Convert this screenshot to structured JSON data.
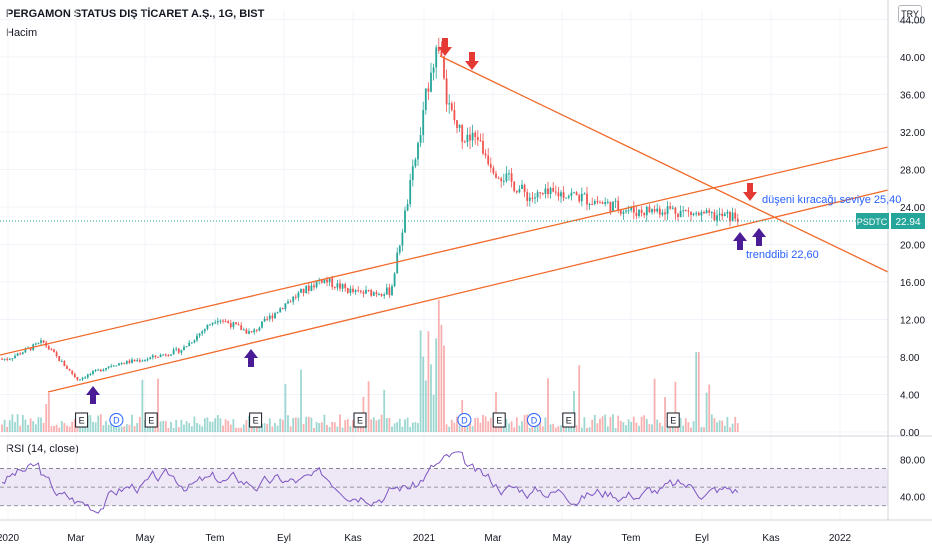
{
  "header": {
    "title": "PERGAMON STATUS DIŞ TİCARET A.Ş., 1G, BIST",
    "volume_label": "Hacim",
    "currency": "TRY",
    "rsi_label": "RSI (14, close)"
  },
  "colors": {
    "up": "#26a69a",
    "down": "#ef5350",
    "trend": "#f06a2b",
    "arrow_red": "#e53935",
    "arrow_purple": "#4a1d96",
    "rsi_line": "#7e57c2",
    "rsi_band": "#ede7f6",
    "price_tag": "#26a69a",
    "annotation": "#2962ff"
  },
  "price_tag": {
    "symbol": "PSDTC",
    "value": "22.94"
  },
  "annotations": {
    "resistance": "düşeni kıracağı seviye 25,40",
    "support": "trenddibi 22,60"
  },
  "chart_data": {
    "type": "candlestick",
    "y_axis": {
      "ylim": [
        0,
        45
      ],
      "ticks": [
        "44.00",
        "40.00",
        "36.00",
        "32.00",
        "28.00",
        "24.00",
        "20.00",
        "16.00",
        "12.00",
        "8.00",
        "4.00",
        "0.00"
      ]
    },
    "x_axis": {
      "ticks": [
        "2020",
        "Mar",
        "May",
        "Tem",
        "Eyl",
        "Kas",
        "2021",
        "Mar",
        "May",
        "Tem",
        "Eyl",
        "Kas",
        "2022"
      ]
    },
    "close_series_approx": [
      {
        "date": "2020-01",
        "close": 7.8
      },
      {
        "date": "2020-02",
        "close": 9.6
      },
      {
        "date": "2020-03",
        "close": 5.6
      },
      {
        "date": "2020-04",
        "close": 7.2
      },
      {
        "date": "2020-05",
        "close": 7.8
      },
      {
        "date": "2020-06",
        "close": 8.8
      },
      {
        "date": "2020-07",
        "close": 12.2
      },
      {
        "date": "2020-08",
        "close": 10.5
      },
      {
        "date": "2020-09",
        "close": 13.8
      },
      {
        "date": "2020-10",
        "close": 16.3
      },
      {
        "date": "2020-11",
        "close": 14.8
      },
      {
        "date": "2020-12",
        "close": 15.0
      },
      {
        "date": "2021-01",
        "close": 35.0
      },
      {
        "date": "2021-02",
        "close": 34.0
      },
      {
        "date": "2021-03",
        "close": 28.0
      },
      {
        "date": "2021-04",
        "close": 25.0
      },
      {
        "date": "2021-05",
        "close": 25.5
      },
      {
        "date": "2021-06",
        "close": 24.5
      },
      {
        "date": "2021-07",
        "close": 23.5
      },
      {
        "date": "2021-08",
        "close": 23.8
      },
      {
        "date": "2021-09",
        "close": 23.0
      },
      {
        "date": "2021-10",
        "close": 22.94
      }
    ],
    "events": [
      {
        "type": "E",
        "date": "2020-03"
      },
      {
        "type": "D",
        "date": "2020-04"
      },
      {
        "type": "E",
        "date": "2020-05"
      },
      {
        "type": "E",
        "date": "2020-08"
      },
      {
        "type": "E",
        "date": "2020-11"
      },
      {
        "type": "D",
        "date": "2021-02"
      },
      {
        "type": "E",
        "date": "2021-03"
      },
      {
        "type": "D",
        "date": "2021-04"
      },
      {
        "type": "E",
        "date": "2021-05"
      },
      {
        "type": "E",
        "date": "2021-08"
      }
    ],
    "rsi": {
      "levels": [
        "80.00",
        "40.00"
      ],
      "upper_band": 70,
      "lower_band": 30,
      "mid": 50
    }
  }
}
